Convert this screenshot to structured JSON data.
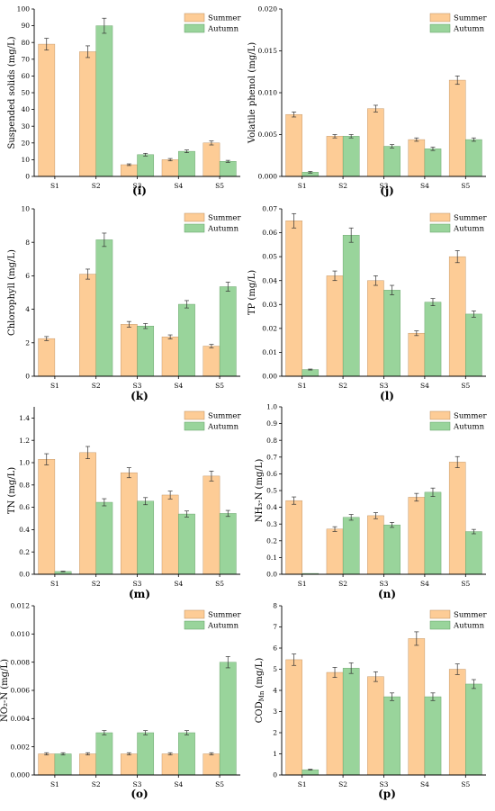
{
  "colors": {
    "summer": "#fdcc96",
    "autumn": "#99d49b",
    "summer_edge": "#b98a5a",
    "autumn_edge": "#5e9a60",
    "axis": "#000000",
    "error": "#333333"
  },
  "chart_data": [
    {
      "type": "bar",
      "panel_label": "(i)",
      "ylabel": "Suspended solids (mg/L)",
      "categories": [
        "S1",
        "S2",
        "S3",
        "S4",
        "S5"
      ],
      "ylim": [
        0,
        100
      ],
      "yticks": [
        0,
        10,
        20,
        30,
        40,
        50,
        60,
        70,
        80,
        90,
        100
      ],
      "ytick_labels": [
        "0",
        "10",
        "20",
        "30",
        "40",
        "50",
        "60",
        "70",
        "80",
        "90",
        "100"
      ],
      "series": [
        {
          "name": "Summer",
          "values": [
            79,
            74.5,
            7,
            10,
            20
          ],
          "errors": [
            3.5,
            3.5,
            0.5,
            0.7,
            1.2
          ]
        },
        {
          "name": "Autumn",
          "values": [
            0,
            90,
            13,
            15,
            9
          ],
          "errors": [
            0,
            4.5,
            0.8,
            0.8,
            0.6
          ]
        }
      ],
      "legend": "top-right",
      "grid": false
    },
    {
      "type": "bar",
      "panel_label": "(j)",
      "ylabel": "Volatile phenol (mg/L)",
      "categories": [
        "S1",
        "S2",
        "S3",
        "S4",
        "S5"
      ],
      "ylim": [
        0,
        0.02
      ],
      "yticks": [
        0,
        0.005,
        0.01,
        0.015,
        0.02
      ],
      "ytick_labels": [
        "0.000",
        "0.005",
        "0.010",
        "0.015",
        "0.020"
      ],
      "series": [
        {
          "name": "Summer",
          "values": [
            0.0074,
            0.0048,
            0.0081,
            0.0044,
            0.0115
          ],
          "errors": [
            0.0003,
            0.0002,
            0.0004,
            0.0002,
            0.0005
          ]
        },
        {
          "name": "Autumn",
          "values": [
            0.0005,
            0.0048,
            0.0036,
            0.0033,
            0.0044
          ],
          "errors": [
            0.0001,
            0.0002,
            0.0002,
            0.0002,
            0.0002
          ]
        }
      ],
      "legend": "top-right",
      "grid": false
    },
    {
      "type": "bar",
      "panel_label": "(k)",
      "ylabel": "Chlorophyll (mg/L)",
      "categories": [
        "S1",
        "S2",
        "S3",
        "S4",
        "S5"
      ],
      "ylim": [
        0,
        10
      ],
      "yticks": [
        0,
        2,
        4,
        6,
        8,
        10
      ],
      "ytick_labels": [
        "0",
        "2",
        "4",
        "6",
        "8",
        "10"
      ],
      "series": [
        {
          "name": "Summer",
          "values": [
            2.25,
            6.1,
            3.1,
            2.35,
            1.8
          ],
          "errors": [
            0.12,
            0.3,
            0.17,
            0.12,
            0.1
          ]
        },
        {
          "name": "Autumn",
          "values": [
            0,
            8.15,
            3.0,
            4.3,
            5.35
          ],
          "errors": [
            0,
            0.4,
            0.15,
            0.22,
            0.27
          ]
        }
      ],
      "legend": "top-right",
      "grid": false
    },
    {
      "type": "bar",
      "panel_label": "(l)",
      "ylabel": "TP (mg/L)",
      "categories": [
        "S1",
        "S2",
        "S3",
        "S4",
        "S5"
      ],
      "ylim": [
        0,
        0.07
      ],
      "yticks": [
        0,
        0.01,
        0.02,
        0.03,
        0.04,
        0.05,
        0.06,
        0.07
      ],
      "ytick_labels": [
        "0.00",
        "0.01",
        "0.02",
        "0.03",
        "0.04",
        "0.05",
        "0.06",
        "0.07"
      ],
      "series": [
        {
          "name": "Summer",
          "values": [
            0.065,
            0.042,
            0.04,
            0.018,
            0.05
          ],
          "errors": [
            0.003,
            0.002,
            0.002,
            0.001,
            0.0025
          ]
        },
        {
          "name": "Autumn",
          "values": [
            0.0028,
            0.059,
            0.036,
            0.031,
            0.026
          ],
          "errors": [
            0.0002,
            0.003,
            0.002,
            0.0015,
            0.0013
          ]
        }
      ],
      "legend": "top-right",
      "grid": false
    },
    {
      "type": "bar",
      "panel_label": "(m)",
      "ylabel": "TN (mg/L)",
      "categories": [
        "S1",
        "S2",
        "S3",
        "S4",
        "S5"
      ],
      "ylim": [
        0,
        1.5
      ],
      "yticks": [
        0,
        0.2,
        0.4,
        0.6,
        0.8,
        1.0,
        1.2,
        1.4
      ],
      "ytick_labels": [
        "0.0",
        "0.2",
        "0.4",
        "0.6",
        "0.8",
        "1.0",
        "1.2",
        "1.4"
      ],
      "series": [
        {
          "name": "Summer",
          "values": [
            1.03,
            1.09,
            0.91,
            0.71,
            0.88
          ],
          "errors": [
            0.05,
            0.055,
            0.045,
            0.035,
            0.044
          ]
        },
        {
          "name": "Autumn",
          "values": [
            0.025,
            0.645,
            0.655,
            0.54,
            0.545
          ],
          "errors": [
            0.003,
            0.032,
            0.032,
            0.027,
            0.027
          ]
        }
      ],
      "legend": "top-right",
      "grid": false
    },
    {
      "type": "bar",
      "panel_label": "(n)",
      "ylabel": "NH₃-N (mg/L)",
      "categories": [
        "S1",
        "S2",
        "S3",
        "S4",
        "S5"
      ],
      "ylim": [
        0,
        1.0
      ],
      "yticks": [
        0,
        0.1,
        0.2,
        0.3,
        0.4,
        0.5,
        0.6,
        0.7,
        0.8,
        0.9,
        1.0
      ],
      "ytick_labels": [
        "0.0",
        "0.1",
        "0.2",
        "0.3",
        "0.4",
        "0.5",
        "0.6",
        "0.7",
        "0.8",
        "0.9",
        "1.0"
      ],
      "series": [
        {
          "name": "Summer",
          "values": [
            0.44,
            0.27,
            0.35,
            0.46,
            0.67
          ],
          "errors": [
            0.022,
            0.014,
            0.018,
            0.023,
            0.033
          ]
        },
        {
          "name": "Autumn",
          "values": [
            0.005,
            0.34,
            0.295,
            0.49,
            0.255
          ],
          "errors": [
            0,
            0.017,
            0.015,
            0.025,
            0.013
          ]
        }
      ],
      "legend": "top-right",
      "grid": false
    },
    {
      "type": "bar",
      "panel_label": "(o)",
      "ylabel": "NO₂-N (mg/L)",
      "categories": [
        "S1",
        "S2",
        "S3",
        "S4",
        "S5"
      ],
      "ylim": [
        0,
        0.012
      ],
      "yticks": [
        0,
        0.002,
        0.004,
        0.006,
        0.008,
        0.01,
        0.012
      ],
      "ytick_labels": [
        "0.000",
        "0.002",
        "0.004",
        "0.006",
        "0.008",
        "0.010",
        "0.012"
      ],
      "series": [
        {
          "name": "Summer",
          "values": [
            0.0015,
            0.0015,
            0.0015,
            0.0015,
            0.0015
          ],
          "errors": [
            8e-05,
            8e-05,
            8e-05,
            8e-05,
            8e-05
          ]
        },
        {
          "name": "Autumn",
          "values": [
            0.0015,
            0.003,
            0.003,
            0.003,
            0.008
          ],
          "errors": [
            8e-05,
            0.00015,
            0.00015,
            0.00015,
            0.0004
          ]
        }
      ],
      "legend": "top-right",
      "grid": false
    },
    {
      "type": "bar",
      "panel_label": "(p)",
      "ylabel": "COD<sub>Mn</sub> (mg/L)",
      "ylabel_main": "COD",
      "ylabel_sub": "Mn",
      "ylabel_tail": " (mg/L)",
      "categories": [
        "S1",
        "S2",
        "S3",
        "S4",
        "S5"
      ],
      "ylim": [
        0,
        8
      ],
      "yticks": [
        0,
        1,
        2,
        3,
        4,
        5,
        6,
        7,
        8
      ],
      "ytick_labels": [
        "0",
        "1",
        "2",
        "3",
        "4",
        "5",
        "6",
        "7",
        "8"
      ],
      "series": [
        {
          "name": "Summer",
          "values": [
            5.45,
            4.85,
            4.65,
            6.45,
            5.0
          ],
          "errors": [
            0.27,
            0.24,
            0.23,
            0.32,
            0.25
          ]
        },
        {
          "name": "Autumn",
          "values": [
            0.25,
            5.05,
            3.7,
            3.7,
            4.3
          ],
          "errors": [
            0.02,
            0.25,
            0.18,
            0.18,
            0.21
          ]
        }
      ],
      "legend": "top-right",
      "grid": false
    }
  ]
}
